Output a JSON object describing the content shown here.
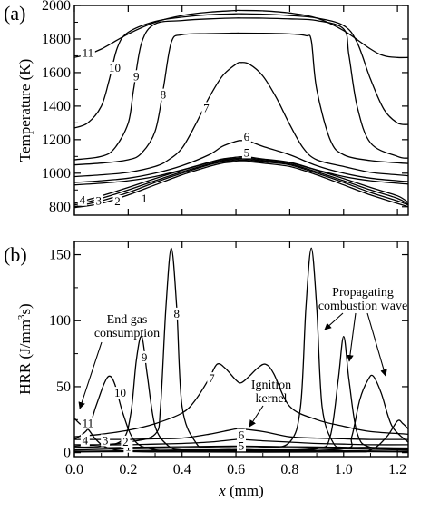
{
  "chart_data": [
    {
      "panel": "(a)",
      "type": "line",
      "ylabel": "Temperature (K)",
      "ylim": [
        750,
        2000
      ],
      "xlim": [
        0,
        1.24
      ],
      "yticks": [
        "800",
        "1000",
        "1200",
        "1400",
        "1600",
        "1800",
        "2000"
      ],
      "series": [
        {
          "name": "1",
          "x": [
            0,
            0.1,
            0.2,
            0.3,
            0.4,
            0.5,
            0.55,
            0.6,
            0.62,
            0.65,
            0.7,
            0.8,
            0.9,
            1.0,
            1.1,
            1.2,
            1.24
          ],
          "y": [
            795,
            820,
            870,
            930,
            990,
            1040,
            1060,
            1068,
            1070,
            1068,
            1060,
            1040,
            990,
            930,
            870,
            820,
            800
          ]
        },
        {
          "name": "2",
          "x": [
            0,
            0.1,
            0.2,
            0.3,
            0.4,
            0.5,
            0.55,
            0.6,
            0.62,
            0.65,
            0.7,
            0.8,
            0.9,
            1.0,
            1.1,
            1.2,
            1.24
          ],
          "y": [
            800,
            835,
            885,
            945,
            1000,
            1050,
            1068,
            1075,
            1078,
            1075,
            1068,
            1050,
            1000,
            945,
            885,
            835,
            810
          ]
        },
        {
          "name": "3",
          "x": [
            0,
            0.1,
            0.2,
            0.3,
            0.4,
            0.5,
            0.55,
            0.6,
            0.62,
            0.65,
            0.7,
            0.8,
            0.9,
            1.0,
            1.1,
            1.2,
            1.24
          ],
          "y": [
            810,
            850,
            900,
            955,
            1008,
            1055,
            1074,
            1082,
            1085,
            1082,
            1074,
            1055,
            1008,
            955,
            900,
            850,
            815
          ]
        },
        {
          "name": "4",
          "x": [
            0,
            0.1,
            0.2,
            0.3,
            0.4,
            0.5,
            0.55,
            0.6,
            0.62,
            0.65,
            0.7,
            0.8,
            0.9,
            1.0,
            1.1,
            1.2,
            1.24
          ],
          "y": [
            820,
            865,
            915,
            968,
            1018,
            1062,
            1080,
            1088,
            1090,
            1088,
            1080,
            1062,
            1018,
            968,
            915,
            865,
            825
          ]
        },
        {
          "name": "5",
          "x": [
            0,
            0.1,
            0.2,
            0.3,
            0.4,
            0.5,
            0.55,
            0.6,
            0.62,
            0.65,
            0.7,
            0.8,
            0.9,
            1.0,
            1.1,
            1.2,
            1.24
          ],
          "y": [
            930,
            940,
            955,
            980,
            1020,
            1065,
            1085,
            1095,
            1098,
            1095,
            1085,
            1065,
            1020,
            980,
            955,
            940,
            935
          ]
        },
        {
          "name": "6",
          "x": [
            0,
            0.1,
            0.2,
            0.3,
            0.4,
            0.5,
            0.55,
            0.6,
            0.62,
            0.65,
            0.7,
            0.8,
            0.9,
            1.0,
            1.1,
            1.2,
            1.24
          ],
          "y": [
            945,
            955,
            970,
            1000,
            1045,
            1110,
            1160,
            1190,
            1195,
            1190,
            1160,
            1110,
            1045,
            1000,
            970,
            955,
            950
          ]
        },
        {
          "name": "7",
          "x": [
            0,
            0.1,
            0.2,
            0.3,
            0.35,
            0.4,
            0.45,
            0.5,
            0.55,
            0.6,
            0.62,
            0.65,
            0.7,
            0.75,
            0.8,
            0.85,
            0.9,
            1.0,
            1.1,
            1.2,
            1.24
          ],
          "y": [
            980,
            990,
            1005,
            1040,
            1080,
            1150,
            1290,
            1450,
            1580,
            1650,
            1660,
            1650,
            1580,
            1450,
            1290,
            1150,
            1080,
            1040,
            1005,
            990,
            985
          ]
        },
        {
          "name": "8",
          "x": [
            0,
            0.1,
            0.2,
            0.25,
            0.3,
            0.33,
            0.36,
            0.4,
            0.5,
            0.6,
            0.62,
            0.7,
            0.8,
            0.86,
            0.88,
            0.9,
            0.95,
            1.0,
            1.1,
            1.2,
            1.24
          ],
          "y": [
            1050,
            1060,
            1080,
            1120,
            1250,
            1500,
            1780,
            1825,
            1832,
            1835,
            1835,
            1834,
            1830,
            1820,
            1790,
            1500,
            1200,
            1110,
            1075,
            1062,
            1058
          ]
        },
        {
          "name": "9",
          "x": [
            0,
            0.1,
            0.15,
            0.2,
            0.22,
            0.25,
            0.3,
            0.4,
            0.5,
            0.6,
            0.62,
            0.7,
            0.8,
            0.9,
            1.0,
            1.02,
            1.05,
            1.1,
            1.2,
            1.24
          ],
          "y": [
            1080,
            1100,
            1150,
            1300,
            1500,
            1780,
            1890,
            1910,
            1920,
            1925,
            1925,
            1924,
            1920,
            1910,
            1860,
            1700,
            1400,
            1180,
            1100,
            1090
          ]
        },
        {
          "name": "10",
          "x": [
            0,
            0.05,
            0.1,
            0.13,
            0.16,
            0.2,
            0.3,
            0.4,
            0.5,
            0.6,
            0.62,
            0.7,
            0.8,
            0.9,
            1.0,
            1.05,
            1.1,
            1.15,
            1.2,
            1.24
          ],
          "y": [
            1270,
            1300,
            1400,
            1560,
            1750,
            1840,
            1905,
            1930,
            1945,
            1950,
            1950,
            1948,
            1940,
            1925,
            1880,
            1780,
            1560,
            1380,
            1300,
            1290
          ]
        },
        {
          "name": "11",
          "x": [
            0,
            0.05,
            0.1,
            0.2,
            0.3,
            0.4,
            0.5,
            0.6,
            0.62,
            0.7,
            0.8,
            0.9,
            1.0,
            1.1,
            1.15,
            1.2,
            1.24
          ],
          "y": [
            1690,
            1710,
            1740,
            1830,
            1900,
            1940,
            1960,
            1970,
            1970,
            1968,
            1955,
            1925,
            1850,
            1740,
            1700,
            1690,
            1690
          ]
        }
      ],
      "curve_labels": [
        "1",
        "2",
        "3",
        "4",
        "5",
        "6",
        "7",
        "8",
        "9",
        "10",
        "11"
      ]
    },
    {
      "panel": "(b)",
      "type": "line",
      "ylabel_main": "HRR (J/mm",
      "ylabel_sup": "3",
      "ylabel_end": "s)",
      "xlabel_italic": "x",
      "xlabel_rest": " (mm)",
      "ylim": [
        -3,
        160
      ],
      "xlim": [
        0,
        1.24
      ],
      "yticks": [
        "0",
        "50",
        "100",
        "150"
      ],
      "xticks": [
        "0.0",
        "0.2",
        "0.4",
        "0.6",
        "0.8",
        "1.0",
        "1.2"
      ],
      "annotations": {
        "end_gas_1": "End gas",
        "end_gas_2": "consumption",
        "ignition_1": "Ignition",
        "ignition_2": "kernel",
        "prop_1": "Propagating",
        "prop_2": "combustion wave"
      },
      "series": [
        {
          "name": "1",
          "x": [
            0,
            0.2,
            0.4,
            0.6,
            0.8,
            1.0,
            1.24
          ],
          "y": [
            0.5,
            0.8,
            1.2,
            1.5,
            1.2,
            0.8,
            0.5
          ]
        },
        {
          "name": "2",
          "x": [
            0,
            0.2,
            0.4,
            0.6,
            0.8,
            1.0,
            1.24
          ],
          "y": [
            1,
            1.5,
            2,
            2.2,
            2,
            1.5,
            1
          ]
        },
        {
          "name": "3",
          "x": [
            0,
            0.2,
            0.4,
            0.6,
            0.8,
            1.0,
            1.24
          ],
          "y": [
            2,
            3,
            3.5,
            3.8,
            3.5,
            3,
            2
          ]
        },
        {
          "name": "4",
          "x": [
            0,
            0.2,
            0.4,
            0.6,
            0.8,
            1.0,
            1.24
          ],
          "y": [
            3.5,
            4,
            4.5,
            5,
            4.5,
            4,
            3.5
          ]
        },
        {
          "name": "5",
          "x": [
            0,
            0.1,
            0.2,
            0.3,
            0.4,
            0.5,
            0.6,
            0.62,
            0.7,
            0.8,
            0.9,
            1.0,
            1.1,
            1.24
          ],
          "y": [
            6,
            6,
            6,
            6.5,
            7,
            8,
            10,
            10,
            9,
            8,
            7,
            6.5,
            6,
            6
          ]
        },
        {
          "name": "6",
          "x": [
            0,
            0.1,
            0.2,
            0.3,
            0.4,
            0.5,
            0.6,
            0.62,
            0.7,
            0.8,
            0.9,
            1.0,
            1.1,
            1.24
          ],
          "y": [
            10,
            10,
            10,
            10.5,
            11,
            14,
            18,
            18,
            16,
            12,
            11,
            10.5,
            10,
            10
          ]
        },
        {
          "name": "7",
          "x": [
            0,
            0.1,
            0.2,
            0.3,
            0.4,
            0.45,
            0.5,
            0.53,
            0.56,
            0.6,
            0.62,
            0.65,
            0.68,
            0.71,
            0.74,
            0.8,
            0.9,
            1.0,
            1.1,
            1.24
          ],
          "y": [
            12,
            14,
            17,
            22,
            30,
            40,
            56,
            67,
            64,
            55,
            53,
            58,
            64,
            67,
            60,
            35,
            25,
            20,
            16,
            14
          ]
        },
        {
          "name": "8",
          "x": [
            0,
            0.1,
            0.2,
            0.3,
            0.32,
            0.34,
            0.36,
            0.38,
            0.4,
            0.45,
            0.5,
            0.7,
            0.8,
            0.84,
            0.86,
            0.88,
            0.9,
            0.92,
            0.96,
            1.0,
            1.1,
            1.24
          ],
          "y": [
            5,
            6,
            8,
            14,
            35,
            110,
            155,
            110,
            35,
            8,
            4,
            4,
            8,
            35,
            110,
            155,
            110,
            35,
            8,
            4,
            4,
            3
          ]
        },
        {
          "name": "9",
          "x": [
            0,
            0.1,
            0.18,
            0.21,
            0.23,
            0.25,
            0.27,
            0.3,
            0.35,
            0.4,
            0.5,
            0.7,
            0.9,
            0.95,
            0.98,
            1.0,
            1.02,
            1.05,
            1.1,
            1.24
          ],
          "y": [
            4,
            5,
            10,
            30,
            70,
            88,
            60,
            20,
            5,
            2,
            2,
            2,
            3,
            12,
            55,
            88,
            55,
            15,
            4,
            3
          ]
        },
        {
          "name": "10",
          "x": [
            0,
            0.05,
            0.08,
            0.11,
            0.13,
            0.15,
            0.18,
            0.22,
            0.28,
            0.4,
            0.7,
            1.0,
            1.03,
            1.06,
            1.09,
            1.11,
            1.14,
            1.18,
            1.24
          ],
          "y": [
            10,
            18,
            35,
            52,
            58,
            52,
            30,
            10,
            3,
            1,
            1,
            3,
            12,
            40,
            55,
            58,
            45,
            20,
            8
          ]
        },
        {
          "name": "11",
          "x": [
            0,
            0.02,
            0.05,
            0.08,
            0.12,
            0.2,
            0.4,
            1.0,
            1.1,
            1.16,
            1.2,
            1.22,
            1.24
          ],
          "y": [
            26,
            22,
            18,
            10,
            4,
            1,
            0.5,
            0.5,
            2,
            12,
            24,
            22,
            18
          ]
        }
      ],
      "curve_labels": [
        "1",
        "2",
        "3",
        "4",
        "5",
        "6",
        "7",
        "8",
        "9",
        "10",
        "11"
      ]
    }
  ],
  "axis_tick_labels_x_top": [
    "0.0",
    "0.2",
    "0.4",
    "0.6",
    "0.8",
    "1.0",
    "1.2"
  ]
}
